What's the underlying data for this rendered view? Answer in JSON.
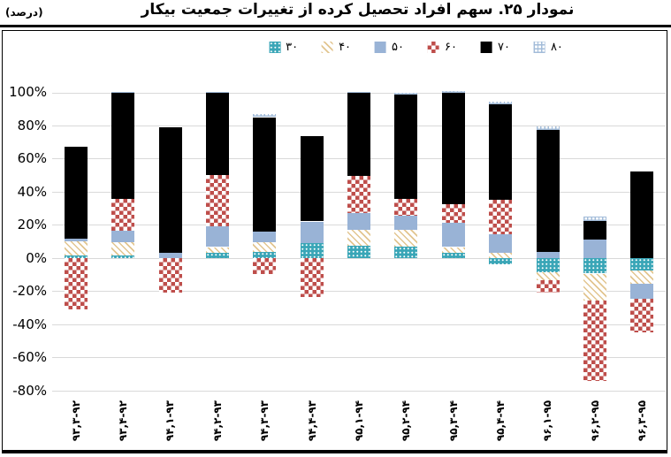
{
  "header": {
    "title": "نمودار ۲۵. سهم افراد تحصیل کرده از تغییرات جمعیت بیکار",
    "unit_label": "(درصد)"
  },
  "chart_data": {
    "type": "bar",
    "stacked": true,
    "title": "نمودار ۲۵. سهم افراد تحصیل کرده از تغییرات جمعیت بیکار",
    "unit": "(درصد)",
    "legend_position": "top",
    "grid": true,
    "ylim": [
      -80,
      100
    ],
    "ytick_step": 20,
    "ytick_labels": [
      "100%",
      "80%",
      "60%",
      "40%",
      "20%",
      "0%",
      "-20%",
      "-40%",
      "-60%",
      "-80%"
    ],
    "categories": [
      "۹۳,۳-۹۲",
      "۹۳,۴-۹۲",
      "۹۴,۱-۹۳",
      "۹۴,۲-۹۳",
      "۹۴,۳-۹۳",
      "۹۴,۴-۹۳",
      "۹۵,۱-۹۴",
      "۹۵,۲-۹۴",
      "۹۵,۳-۹۴",
      "۹۵,۴-۹۴",
      "۹۶,۱-۹۵",
      "۹۶,۲-۹۵",
      "۹۶,۳-۹۵"
    ],
    "series": [
      {
        "name": "۳۰",
        "key": "s30",
        "color": "#3AA6B7",
        "pattern": "teal-dots",
        "values": [
          1.5,
          1.5,
          0,
          3,
          3.5,
          9,
          7.5,
          7,
          3,
          -4,
          -8.5,
          -9.5,
          -7.5
        ]
      },
      {
        "name": "۴۰",
        "key": "s40",
        "color": "#E2C58F",
        "pattern": "tan-diagonal-hatch",
        "values": [
          8.5,
          8,
          0,
          3.5,
          6,
          0,
          9.5,
          10,
          3.5,
          3,
          -5,
          -16,
          -8
        ]
      },
      {
        "name": "۵۰",
        "key": "s50",
        "color": "#99B3D6",
        "pattern": "solid-light-blue",
        "values": [
          1.5,
          7,
          3,
          12.5,
          6.5,
          13,
          10,
          8.5,
          14.5,
          11.5,
          3.5,
          11,
          -9
        ]
      },
      {
        "name": "۶۰",
        "key": "s60",
        "color": "#BE4E4B",
        "pattern": "red-checker",
        "values": [
          -31,
          19,
          -21,
          31,
          -10,
          -23.5,
          22.5,
          10,
          11.5,
          20.5,
          -7.5,
          -49,
          -20.5
        ]
      },
      {
        "name": "۷۰",
        "key": "s70",
        "color": "#000000",
        "pattern": "solid-black",
        "values": [
          55.5,
          64,
          76,
          50,
          69,
          51.5,
          50,
          63,
          67,
          58,
          74,
          11.5,
          52
        ]
      },
      {
        "name": "۸۰",
        "key": "s80",
        "color": "#A3BCD9",
        "pattern": "blue-grid",
        "values": [
          0,
          1,
          0,
          0.5,
          2,
          0,
          1,
          1,
          1.5,
          1.5,
          2,
          2.5,
          0
        ]
      }
    ]
  }
}
